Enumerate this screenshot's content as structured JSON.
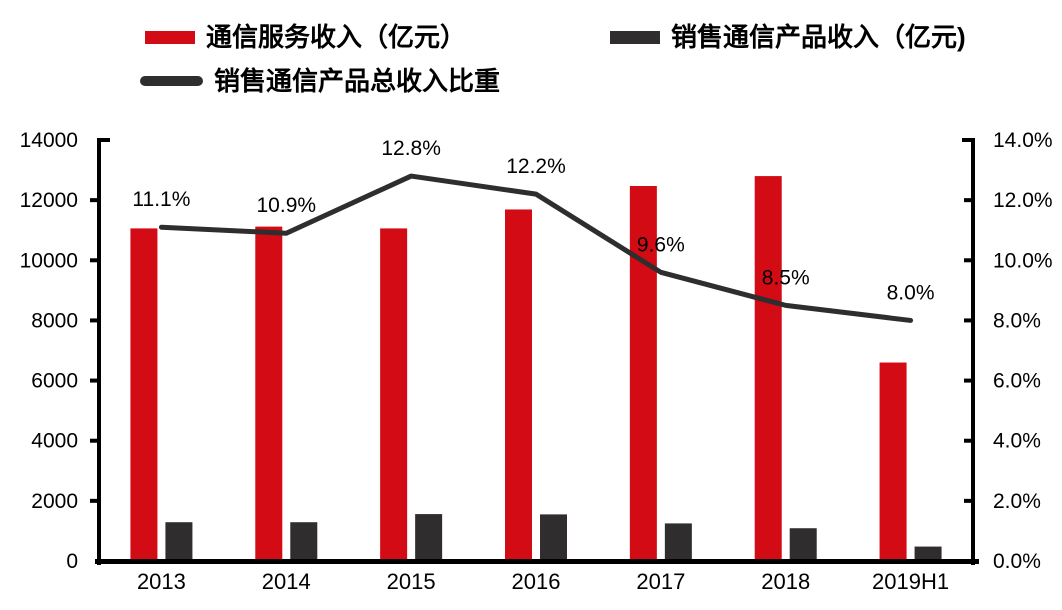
{
  "colors": {
    "service_bar_red": "#D20B14",
    "product_bar_dark": "#2F2D2E",
    "ratio_line_dark": "#2F2D2E",
    "axis_black": "#000000",
    "background": "#FFFFFF"
  },
  "legend": {
    "items": [
      {
        "label": "通信服务收入（亿元）",
        "type": "bar",
        "color": "#D20B14"
      },
      {
        "label": "销售通信产品收入（亿元)",
        "type": "bar",
        "color": "#2F2D2E"
      },
      {
        "label": "销售通信产品总收入比重",
        "type": "line",
        "color": "#2F2D2E"
      }
    ]
  },
  "chart_data": {
    "type": "bar",
    "subtype": "grouped-bars-with-line",
    "categories": [
      "2013",
      "2014",
      "2015",
      "2016",
      "2017",
      "2018",
      "2019H1"
    ],
    "series": [
      {
        "name": "通信服务收入（亿元）",
        "type": "bar",
        "axis": "left",
        "color": "#D20B14",
        "values": [
          11060,
          11120,
          11060,
          11690,
          12470,
          12800,
          6600
        ]
      },
      {
        "name": "销售通信产品收入（亿元)",
        "type": "bar",
        "axis": "left",
        "color": "#2F2D2E",
        "values": [
          1290,
          1290,
          1560,
          1550,
          1250,
          1090,
          480
        ]
      },
      {
        "name": "销售通信产品总收入比重",
        "type": "line",
        "axis": "right",
        "color": "#2F2D2E",
        "values": [
          11.1,
          10.9,
          12.8,
          12.2,
          9.6,
          8.5,
          8.0
        ],
        "point_labels": [
          "11.1%",
          "10.9%",
          "12.8%",
          "12.2%",
          "9.6%",
          "8.5%",
          "8.0%"
        ]
      }
    ],
    "left_axis": {
      "min": 0,
      "max": 14000,
      "step": 2000,
      "tick_labels": [
        "0",
        "2000",
        "4000",
        "6000",
        "8000",
        "10000",
        "12000",
        "14000"
      ]
    },
    "right_axis": {
      "min": 0,
      "max": 14,
      "step": 2,
      "tick_labels": [
        "0.0%",
        "2.0%",
        "4.0%",
        "6.0%",
        "8.0%",
        "10.0%",
        "12.0%",
        "14.0%"
      ]
    },
    "grid": false,
    "legend_position": "top"
  }
}
